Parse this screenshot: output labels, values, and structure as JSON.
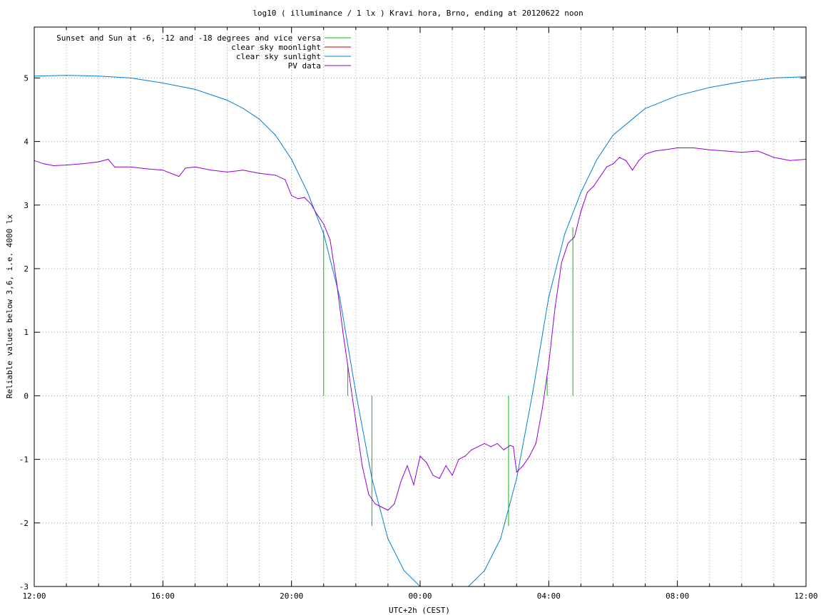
{
  "chart_data": {
    "type": "line",
    "title": "log10 ( illuminance / 1 lx ) Kravi hora, Brno, ending at 20120622 noon",
    "xlabel": "UTC+2h (CEST)",
    "ylabel": "Reliable values below 3,6, i.e. 4000 lx",
    "xlim": [
      0,
      24
    ],
    "ylim": [
      -3,
      5.8
    ],
    "x_ticks": [
      {
        "x": 0,
        "label": "12:00"
      },
      {
        "x": 4,
        "label": "16:00"
      },
      {
        "x": 8,
        "label": "20:00"
      },
      {
        "x": 12,
        "label": "00:00"
      },
      {
        "x": 16,
        "label": "04:00"
      },
      {
        "x": 20,
        "label": "08:00"
      },
      {
        "x": 24,
        "label": "12:00"
      }
    ],
    "y_ticks": [
      {
        "y": -3,
        "label": "-3"
      },
      {
        "y": -2,
        "label": "-2"
      },
      {
        "y": -1,
        "label": "-1"
      },
      {
        "y": 0,
        "label": "0"
      },
      {
        "y": 1,
        "label": "1"
      },
      {
        "y": 2,
        "label": "2"
      },
      {
        "y": 3,
        "label": "3"
      },
      {
        "y": 4,
        "label": "4"
      },
      {
        "y": 5,
        "label": "5"
      }
    ],
    "grid": true,
    "legend_position": "top-left",
    "series": [
      {
        "name": "Sunset and Sun at -6, -12 and -18 degrees and vice versa",
        "color": "#00c000",
        "kind": "impulses",
        "points": [
          {
            "x": 9.0,
            "y0": 0,
            "y1": 2.6
          },
          {
            "x": 9.75,
            "y0": 0,
            "y1": 0.5
          },
          {
            "x": 10.5,
            "y0": -2.05,
            "y1": 0
          },
          {
            "x": 14.75,
            "y0": -2.05,
            "y1": 0
          },
          {
            "x": 15.95,
            "y0": 0,
            "y1": 0.3
          },
          {
            "x": 16.75,
            "y0": 0,
            "y1": 2.65
          }
        ]
      },
      {
        "name": "clear sky moonlight",
        "color": "#cc0000",
        "points": []
      },
      {
        "name": "clear sky sunlight",
        "color": "#0080d0",
        "x": [
          0,
          1,
          2,
          3,
          4,
          5,
          6,
          6.5,
          7,
          7.5,
          8,
          8.5,
          9,
          9.5,
          10,
          10.5,
          11,
          11.5,
          12,
          12.5,
          13,
          13.5,
          14,
          14.5,
          15,
          15.5,
          16,
          16.5,
          17,
          17.5,
          18,
          19,
          20,
          21,
          22,
          23,
          24
        ],
        "y": [
          5.03,
          5.04,
          5.03,
          5.0,
          4.92,
          4.82,
          4.65,
          4.52,
          4.35,
          4.1,
          3.72,
          3.2,
          2.55,
          1.55,
          0.05,
          -1.3,
          -2.25,
          -2.75,
          -3.0,
          -3.15,
          -3.2,
          -3.1,
          -2.75,
          -2.25,
          -1.3,
          0.05,
          1.55,
          2.55,
          3.2,
          3.72,
          4.1,
          4.52,
          4.72,
          4.85,
          4.94,
          5.0,
          5.02
        ]
      },
      {
        "name": "PV data",
        "color": "#9400d3",
        "x": [
          0,
          0.3,
          0.6,
          1,
          1.5,
          2,
          2.3,
          2.5,
          3,
          3.5,
          4,
          4.5,
          4.7,
          5,
          5.5,
          6,
          6.5,
          7,
          7.5,
          7.8,
          8,
          8.2,
          8.4,
          8.6,
          8.8,
          9,
          9.2,
          9.4,
          9.6,
          9.8,
          10,
          10.2,
          10.4,
          10.6,
          10.8,
          11,
          11.2,
          11.4,
          11.6,
          11.8,
          12,
          12.2,
          12.4,
          12.6,
          12.8,
          13,
          13.2,
          13.4,
          13.6,
          13.8,
          14,
          14.2,
          14.4,
          14.6,
          14.8,
          14.9,
          15.0,
          15.2,
          15.4,
          15.6,
          15.8,
          16,
          16.2,
          16.4,
          16.6,
          16.8,
          17,
          17.2,
          17.4,
          17.6,
          17.8,
          18,
          18.2,
          18.4,
          18.6,
          18.8,
          19,
          19.3,
          19.6,
          20,
          20.5,
          21,
          21.5,
          22,
          22.5,
          23,
          23.5,
          24
        ],
        "y": [
          3.7,
          3.65,
          3.62,
          3.63,
          3.65,
          3.68,
          3.72,
          3.6,
          3.6,
          3.57,
          3.55,
          3.45,
          3.58,
          3.6,
          3.55,
          3.52,
          3.55,
          3.5,
          3.47,
          3.4,
          3.15,
          3.1,
          3.12,
          3.02,
          2.85,
          2.7,
          2.45,
          1.8,
          1.0,
          0.3,
          -0.4,
          -1.1,
          -1.55,
          -1.7,
          -1.75,
          -1.8,
          -1.7,
          -1.35,
          -1.1,
          -1.4,
          -0.95,
          -1.05,
          -1.25,
          -1.3,
          -1.1,
          -1.25,
          -1.0,
          -0.95,
          -0.85,
          -0.8,
          -0.75,
          -0.8,
          -0.75,
          -0.85,
          -0.78,
          -0.8,
          -1.2,
          -1.1,
          -0.95,
          -0.75,
          -0.2,
          0.5,
          1.4,
          2.1,
          2.4,
          2.5,
          2.9,
          3.2,
          3.3,
          3.45,
          3.6,
          3.65,
          3.75,
          3.7,
          3.55,
          3.7,
          3.8,
          3.85,
          3.87,
          3.9,
          3.9,
          3.87,
          3.85,
          3.83,
          3.85,
          3.75,
          3.7,
          3.72
        ]
      }
    ]
  }
}
